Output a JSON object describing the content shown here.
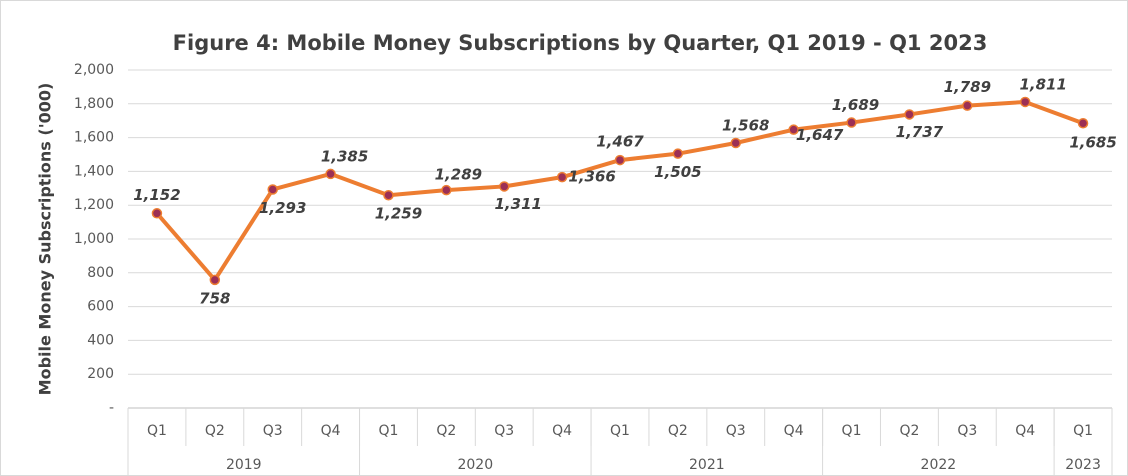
{
  "chart_data": {
    "type": "line",
    "title": "Figure 4: Mobile Money Subscriptions by Quarter, Q1 2019 - Q1 2023",
    "y_label": "Mobile Money Subscriptions ('000)",
    "categories": [
      "Q1",
      "Q2",
      "Q3",
      "Q4",
      "Q1",
      "Q2",
      "Q3",
      "Q4",
      "Q1",
      "Q2",
      "Q3",
      "Q4",
      "Q1",
      "Q2",
      "Q3",
      "Q4",
      "Q1"
    ],
    "groups": [
      {
        "label": "2019",
        "count": 4
      },
      {
        "label": "2020",
        "count": 4
      },
      {
        "label": "2021",
        "count": 4
      },
      {
        "label": "2022",
        "count": 4
      },
      {
        "label": "2023",
        "count": 1
      }
    ],
    "series": [
      {
        "name": "Mobile Money Subscriptions",
        "color": "#ed7d31",
        "marker_color": "#9c2f55",
        "values": [
          1152,
          758,
          1293,
          1385,
          1259,
          1289,
          1311,
          1366,
          1467,
          1505,
          1568,
          1647,
          1689,
          1737,
          1789,
          1811,
          1685
        ],
        "value_labels": [
          "1,152",
          "758",
          "1,293",
          "1,385",
          "1,259",
          "1,289",
          "1,311",
          "1,366",
          "1,467",
          "1,505",
          "1,568",
          "1,647",
          "1,689",
          "1,737",
          "1,789",
          "1,811",
          "1,685"
        ]
      }
    ],
    "ylim": [
      0,
      2000
    ],
    "yticks": [
      {
        "value": 0,
        "label": "-"
      },
      200,
      400,
      600,
      800,
      {
        "value": 1000,
        "label": "1,000"
      },
      {
        "value": 1200,
        "label": "1,200"
      },
      {
        "value": 1400,
        "label": "1,400"
      },
      {
        "value": 1600,
        "label": "1,600"
      },
      {
        "value": 1800,
        "label": "1,800"
      },
      {
        "value": 2000,
        "label": "2,000"
      }
    ],
    "grid": true
  }
}
